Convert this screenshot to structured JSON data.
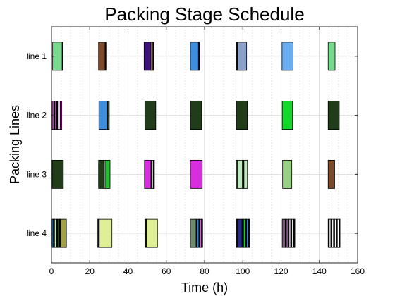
{
  "chart_data": {
    "type": "gantt",
    "title": "Packing Stage Schedule",
    "xlabel": "Time (h)",
    "ylabel": "Packing Lines",
    "xlim": [
      0,
      160
    ],
    "x_ticks": [
      0,
      20,
      40,
      60,
      80,
      100,
      120,
      140,
      160
    ],
    "grid": true,
    "lines": [
      "line 1",
      "line 2",
      "line 3",
      "line 4"
    ],
    "tasks": [
      {
        "line": "line 1",
        "start": 0.6,
        "end": 5.6,
        "color": "#77d98b"
      },
      {
        "line": "line 1",
        "start": 5.6,
        "end": 6.0,
        "color": "#111111"
      },
      {
        "line": "line 1",
        "start": 24.6,
        "end": 28.0,
        "color": "#7a4a2a"
      },
      {
        "line": "line 1",
        "start": 28.0,
        "end": 28.5,
        "color": "#111111"
      },
      {
        "line": "line 1",
        "start": 48.4,
        "end": 52.0,
        "color": "#3c137c"
      },
      {
        "line": "line 1",
        "start": 52.0,
        "end": 53.0,
        "color": "#e8b99a"
      },
      {
        "line": "line 1",
        "start": 53.0,
        "end": 53.5,
        "color": "#111111"
      },
      {
        "line": "line 1",
        "start": 72.6,
        "end": 76.8,
        "color": "#3c8fde"
      },
      {
        "line": "line 1",
        "start": 76.8,
        "end": 77.3,
        "color": "#111111"
      },
      {
        "line": "line 1",
        "start": 96.6,
        "end": 97.3,
        "color": "#111111"
      },
      {
        "line": "line 1",
        "start": 97.3,
        "end": 102.0,
        "color": "#8aa0c8"
      },
      {
        "line": "line 1",
        "start": 120.5,
        "end": 126.3,
        "color": "#6aaef2"
      },
      {
        "line": "line 1",
        "start": 144.6,
        "end": 148.2,
        "color": "#77d98b"
      },
      {
        "line": "line 2",
        "start": 0.4,
        "end": 1.2,
        "color": "#cc66cc"
      },
      {
        "line": "line 2",
        "start": 1.2,
        "end": 1.8,
        "color": "#111111"
      },
      {
        "line": "line 2",
        "start": 1.8,
        "end": 2.6,
        "color": "#cc66cc"
      },
      {
        "line": "line 2",
        "start": 2.6,
        "end": 3.2,
        "color": "#111111"
      },
      {
        "line": "line 2",
        "start": 3.2,
        "end": 4.6,
        "color": "#e0d0e0"
      },
      {
        "line": "line 2",
        "start": 4.6,
        "end": 5.4,
        "color": "#cc66cc"
      },
      {
        "line": "line 2",
        "start": 24.8,
        "end": 29.0,
        "color": "#3c8fde"
      },
      {
        "line": "line 2",
        "start": 29.0,
        "end": 29.6,
        "color": "#111111"
      },
      {
        "line": "line 2",
        "start": 29.6,
        "end": 30.2,
        "color": "#9bd5a0"
      },
      {
        "line": "line 2",
        "start": 48.8,
        "end": 54.5,
        "color": "#203c18"
      },
      {
        "line": "line 2",
        "start": 72.6,
        "end": 78.5,
        "color": "#203c18"
      },
      {
        "line": "line 2",
        "start": 96.6,
        "end": 102.4,
        "color": "#203c18"
      },
      {
        "line": "line 2",
        "start": 120.6,
        "end": 126.0,
        "color": "#10d728"
      },
      {
        "line": "line 2",
        "start": 144.6,
        "end": 150.4,
        "color": "#203c18"
      },
      {
        "line": "line 3",
        "start": 0.4,
        "end": 6.2,
        "color": "#203c18"
      },
      {
        "line": "line 3",
        "start": 24.6,
        "end": 27.4,
        "color": "#203c18"
      },
      {
        "line": "line 3",
        "start": 27.4,
        "end": 28.0,
        "color": "#ffffff"
      },
      {
        "line": "line 3",
        "start": 28.0,
        "end": 30.6,
        "color": "#22c02e"
      },
      {
        "line": "line 3",
        "start": 48.6,
        "end": 52.0,
        "color": "#d92ee0"
      },
      {
        "line": "line 3",
        "start": 52.0,
        "end": 52.6,
        "color": "#111111"
      },
      {
        "line": "line 3",
        "start": 52.6,
        "end": 53.2,
        "color": "#ffffff"
      },
      {
        "line": "line 3",
        "start": 53.2,
        "end": 53.8,
        "color": "#111111"
      },
      {
        "line": "line 3",
        "start": 72.6,
        "end": 78.8,
        "color": "#d92ee0"
      },
      {
        "line": "line 3",
        "start": 96.4,
        "end": 97.4,
        "color": "#203c18"
      },
      {
        "line": "line 3",
        "start": 97.4,
        "end": 99.8,
        "color": "#bfe8bf"
      },
      {
        "line": "line 3",
        "start": 99.8,
        "end": 100.6,
        "color": "#111111"
      },
      {
        "line": "line 3",
        "start": 100.6,
        "end": 102.4,
        "color": "#bfe8bf"
      },
      {
        "line": "line 3",
        "start": 120.8,
        "end": 125.6,
        "color": "#99cf84"
      },
      {
        "line": "line 3",
        "start": 144.6,
        "end": 148.0,
        "color": "#7a4a2a"
      },
      {
        "line": "line 4",
        "start": 0.4,
        "end": 1.0,
        "color": "#3c8fde"
      },
      {
        "line": "line 4",
        "start": 1.0,
        "end": 1.6,
        "color": "#111111"
      },
      {
        "line": "line 4",
        "start": 1.6,
        "end": 2.6,
        "color": "#bfe8bf"
      },
      {
        "line": "line 4",
        "start": 2.6,
        "end": 3.2,
        "color": "#111111"
      },
      {
        "line": "line 4",
        "start": 3.2,
        "end": 4.2,
        "color": "#2a4a2a"
      },
      {
        "line": "line 4",
        "start": 4.2,
        "end": 4.8,
        "color": "#111111"
      },
      {
        "line": "line 4",
        "start": 4.8,
        "end": 7.8,
        "color": "#a0a048"
      },
      {
        "line": "line 4",
        "start": 24.2,
        "end": 25.0,
        "color": "#111111"
      },
      {
        "line": "line 4",
        "start": 25.0,
        "end": 31.6,
        "color": "#deef98"
      },
      {
        "line": "line 4",
        "start": 48.8,
        "end": 49.6,
        "color": "#111111"
      },
      {
        "line": "line 4",
        "start": 49.6,
        "end": 55.4,
        "color": "#deef98"
      },
      {
        "line": "line 4",
        "start": 72.6,
        "end": 75.6,
        "color": "#6e8c6e"
      },
      {
        "line": "line 4",
        "start": 75.6,
        "end": 76.2,
        "color": "#111111"
      },
      {
        "line": "line 4",
        "start": 76.2,
        "end": 77.0,
        "color": "#3c8fde"
      },
      {
        "line": "line 4",
        "start": 77.0,
        "end": 77.6,
        "color": "#111111"
      },
      {
        "line": "line 4",
        "start": 77.6,
        "end": 78.4,
        "color": "#cc66cc"
      },
      {
        "line": "line 4",
        "start": 78.4,
        "end": 79.0,
        "color": "#111111"
      },
      {
        "line": "line 4",
        "start": 96.6,
        "end": 97.4,
        "color": "#111111"
      },
      {
        "line": "line 4",
        "start": 97.4,
        "end": 99.6,
        "color": "#2a2a8a"
      },
      {
        "line": "line 4",
        "start": 99.6,
        "end": 100.4,
        "color": "#111111"
      },
      {
        "line": "line 4",
        "start": 100.4,
        "end": 101.4,
        "color": "#10d728"
      },
      {
        "line": "line 4",
        "start": 101.4,
        "end": 102.0,
        "color": "#111111"
      },
      {
        "line": "line 4",
        "start": 102.0,
        "end": 103.0,
        "color": "#3c8fde"
      },
      {
        "line": "line 4",
        "start": 103.0,
        "end": 103.6,
        "color": "#111111"
      },
      {
        "line": "line 4",
        "start": 120.6,
        "end": 122.2,
        "color": "#7a5a7a"
      },
      {
        "line": "line 4",
        "start": 122.2,
        "end": 122.8,
        "color": "#111111"
      },
      {
        "line": "line 4",
        "start": 122.8,
        "end": 123.6,
        "color": "#cc66cc"
      },
      {
        "line": "line 4",
        "start": 123.6,
        "end": 124.2,
        "color": "#111111"
      },
      {
        "line": "line 4",
        "start": 124.2,
        "end": 125.0,
        "color": "#ffffff"
      },
      {
        "line": "line 4",
        "start": 125.0,
        "end": 125.6,
        "color": "#111111"
      },
      {
        "line": "line 4",
        "start": 125.6,
        "end": 126.6,
        "color": "#ffffff"
      },
      {
        "line": "line 4",
        "start": 126.6,
        "end": 127.2,
        "color": "#111111"
      },
      {
        "line": "line 4",
        "start": 144.6,
        "end": 145.2,
        "color": "#111111"
      },
      {
        "line": "line 4",
        "start": 145.2,
        "end": 146.0,
        "color": "#ffffff"
      },
      {
        "line": "line 4",
        "start": 146.0,
        "end": 146.6,
        "color": "#111111"
      },
      {
        "line": "line 4",
        "start": 146.6,
        "end": 147.4,
        "color": "#ffffff"
      },
      {
        "line": "line 4",
        "start": 147.4,
        "end": 148.0,
        "color": "#111111"
      },
      {
        "line": "line 4",
        "start": 148.0,
        "end": 148.8,
        "color": "#ffffff"
      },
      {
        "line": "line 4",
        "start": 148.8,
        "end": 149.4,
        "color": "#111111"
      },
      {
        "line": "line 4",
        "start": 149.4,
        "end": 150.2,
        "color": "#ffffff"
      },
      {
        "line": "line 4",
        "start": 150.2,
        "end": 150.8,
        "color": "#111111"
      }
    ]
  }
}
